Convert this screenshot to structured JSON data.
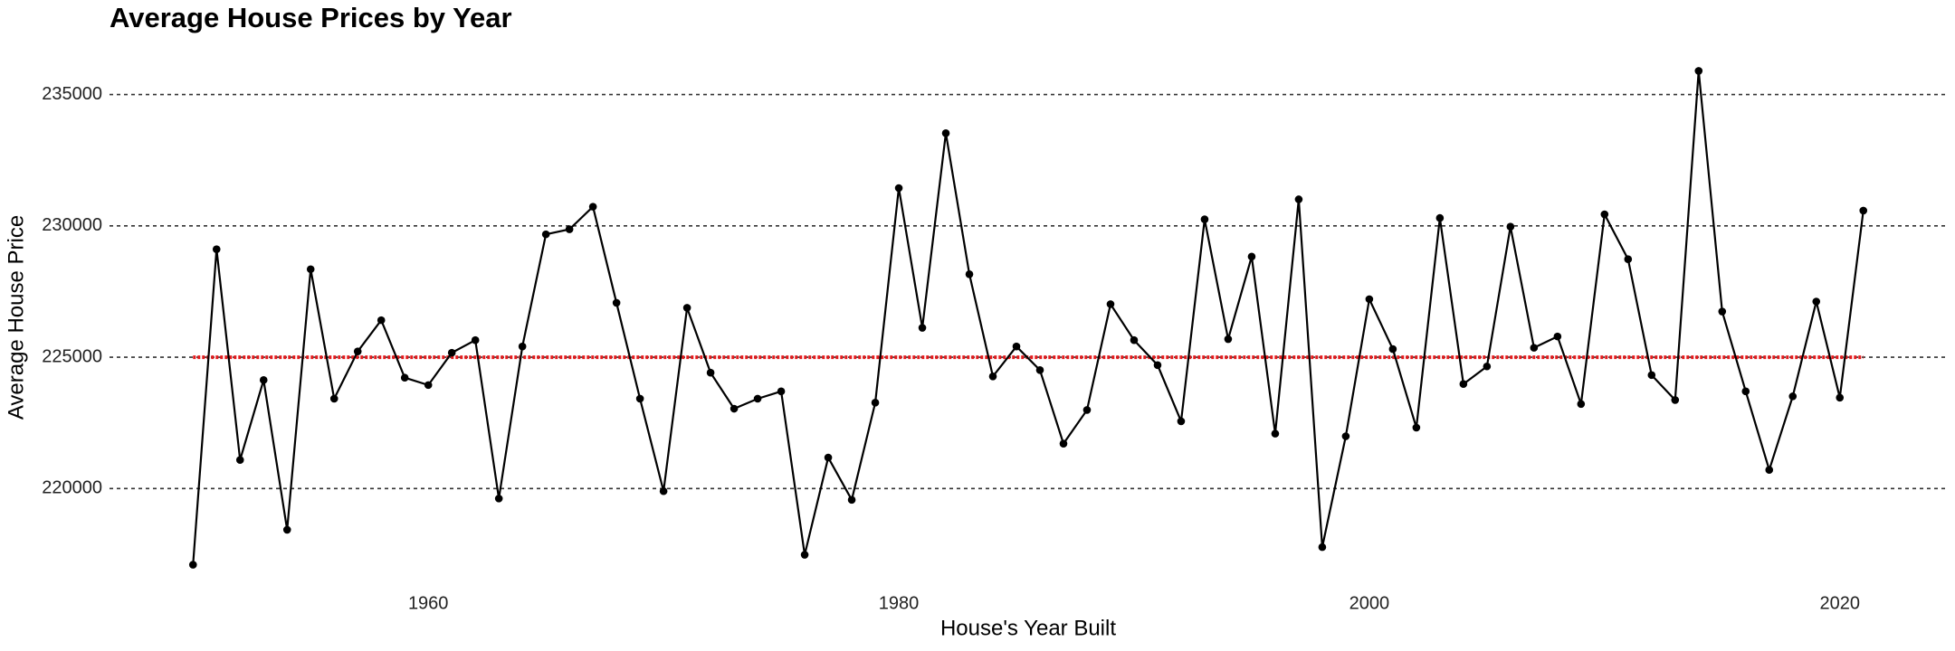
{
  "chart_data": {
    "type": "line",
    "title": "Average House Prices by Year",
    "x_label": "House's Year Built",
    "y_label": "Average House Price",
    "x": [
      1950,
      1951,
      1952,
      1953,
      1954,
      1955,
      1956,
      1957,
      1958,
      1959,
      1960,
      1961,
      1962,
      1963,
      1964,
      1965,
      1966,
      1967,
      1968,
      1969,
      1970,
      1971,
      1972,
      1973,
      1974,
      1975,
      1976,
      1977,
      1978,
      1979,
      1980,
      1981,
      1982,
      1983,
      1984,
      1985,
      1986,
      1987,
      1988,
      1989,
      1990,
      1991,
      1992,
      1993,
      1994,
      1995,
      1996,
      1997,
      1998,
      1999,
      2000,
      2001,
      2002,
      2003,
      2004,
      2005,
      2006,
      2007,
      2008,
      2009,
      2010,
      2011,
      2012,
      2013,
      2014,
      2015,
      2016,
      2017,
      2018,
      2019,
      2020,
      2021
    ],
    "series": [
      {
        "color": "#000000",
        "values": [
          217100,
          229110,
          221090,
          224130,
          218430,
          228350,
          223420,
          225220,
          226410,
          224220,
          223940,
          225170,
          225650,
          219620,
          225410,
          229680,
          229870,
          230730,
          227070,
          223420,
          219900,
          226880,
          224410,
          223040,
          223420,
          223700,
          217480,
          221180,
          219570,
          223270,
          231440,
          226120,
          233530,
          228160,
          224270,
          225410,
          224510,
          221710,
          222990,
          227020,
          225650,
          224700,
          222560,
          230250,
          225690,
          228830,
          222090,
          231010,
          217770,
          221990,
          227210,
          225310,
          222320,
          230300,
          223980,
          224650,
          229970,
          225360,
          225790,
          223220,
          230440,
          228730,
          224320,
          223370,
          235900,
          226740,
          223700,
          220710,
          223510,
          227120,
          223460,
          230580
        ]
      }
    ],
    "hline": {
      "value": 225000,
      "color": "#e41a1c"
    },
    "xlim": [
      1946.45,
      2024.55
    ],
    "xticks": [
      1960,
      1980,
      2000,
      2020
    ],
    "ylim": [
      216500,
      236500
    ],
    "yticks": [
      220000,
      225000,
      230000,
      235000
    ],
    "grid": true
  }
}
